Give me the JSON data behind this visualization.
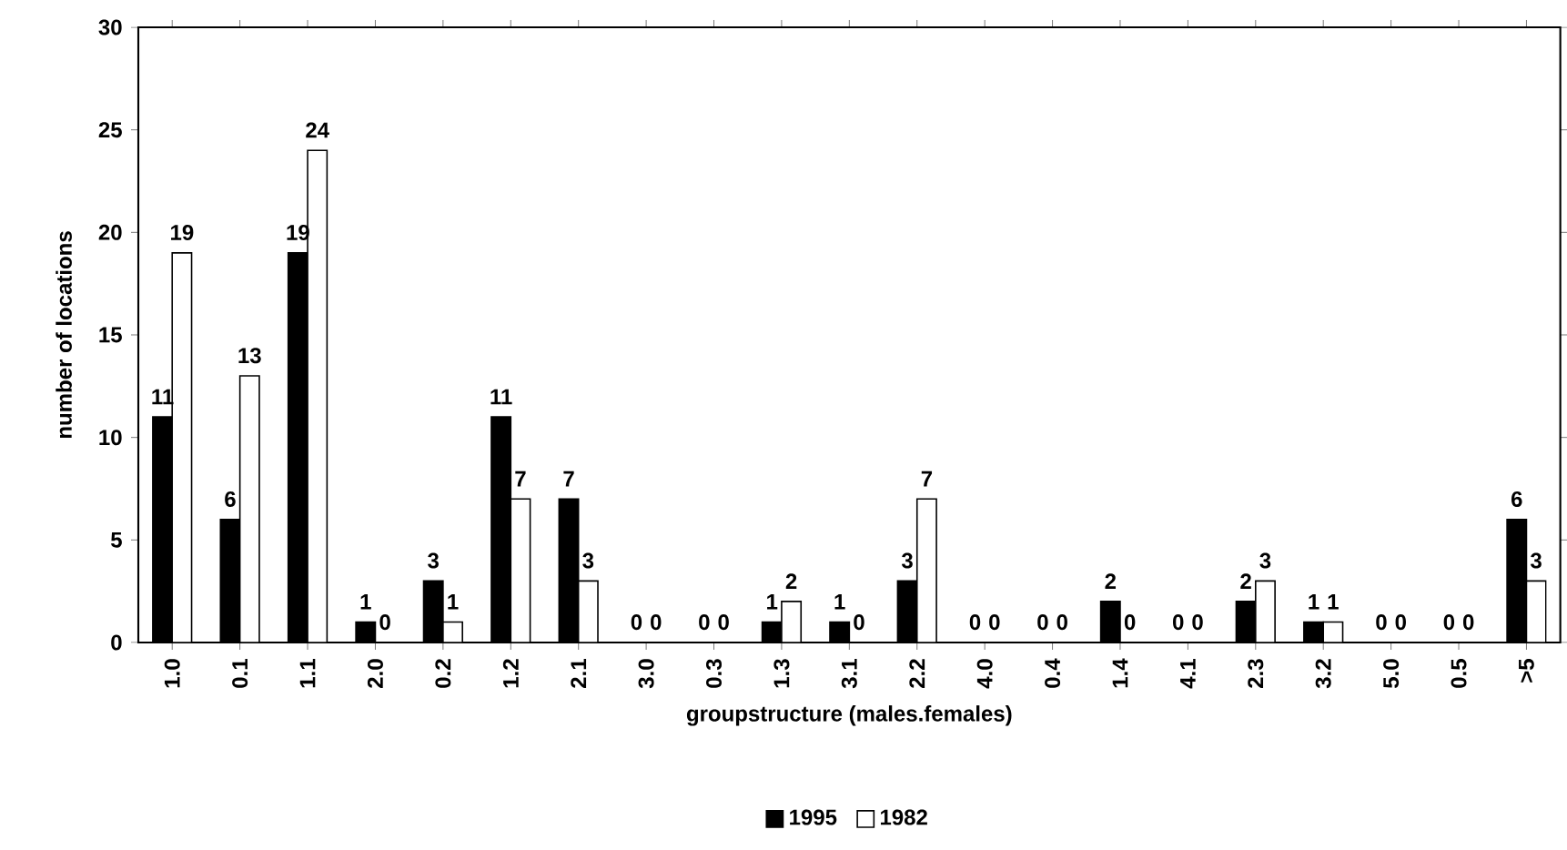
{
  "chart_data": {
    "type": "bar",
    "xlabel": "groupstructure (males.females)",
    "ylabel": "number of locations",
    "categories": [
      "1.0",
      "0.1",
      "1.1",
      "2.0",
      "0.2",
      "1.2",
      "2.1",
      "3.0",
      "0.3",
      "1.3",
      "3.1",
      "2.2",
      "4.0",
      "0.4",
      "1.4",
      "4.1",
      "2.3",
      "3.2",
      "5.0",
      "0.5",
      ">5"
    ],
    "series": [
      {
        "name": "1995",
        "color": "#000000",
        "values": [
          11,
          6,
          19,
          1,
          3,
          11,
          7,
          0,
          0,
          1,
          1,
          3,
          0,
          0,
          2,
          0,
          2,
          1,
          0,
          0,
          6
        ]
      },
      {
        "name": "1982",
        "color": "#ffffff",
        "values": [
          19,
          13,
          24,
          0,
          1,
          7,
          3,
          0,
          0,
          2,
          0,
          7,
          0,
          0,
          0,
          0,
          3,
          1,
          0,
          0,
          3
        ]
      }
    ],
    "ylim": [
      0,
      30
    ],
    "yticks": [
      0,
      5,
      10,
      15,
      20,
      25,
      30
    ],
    "data_labels": true,
    "legend": "bottom",
    "grid": false
  }
}
